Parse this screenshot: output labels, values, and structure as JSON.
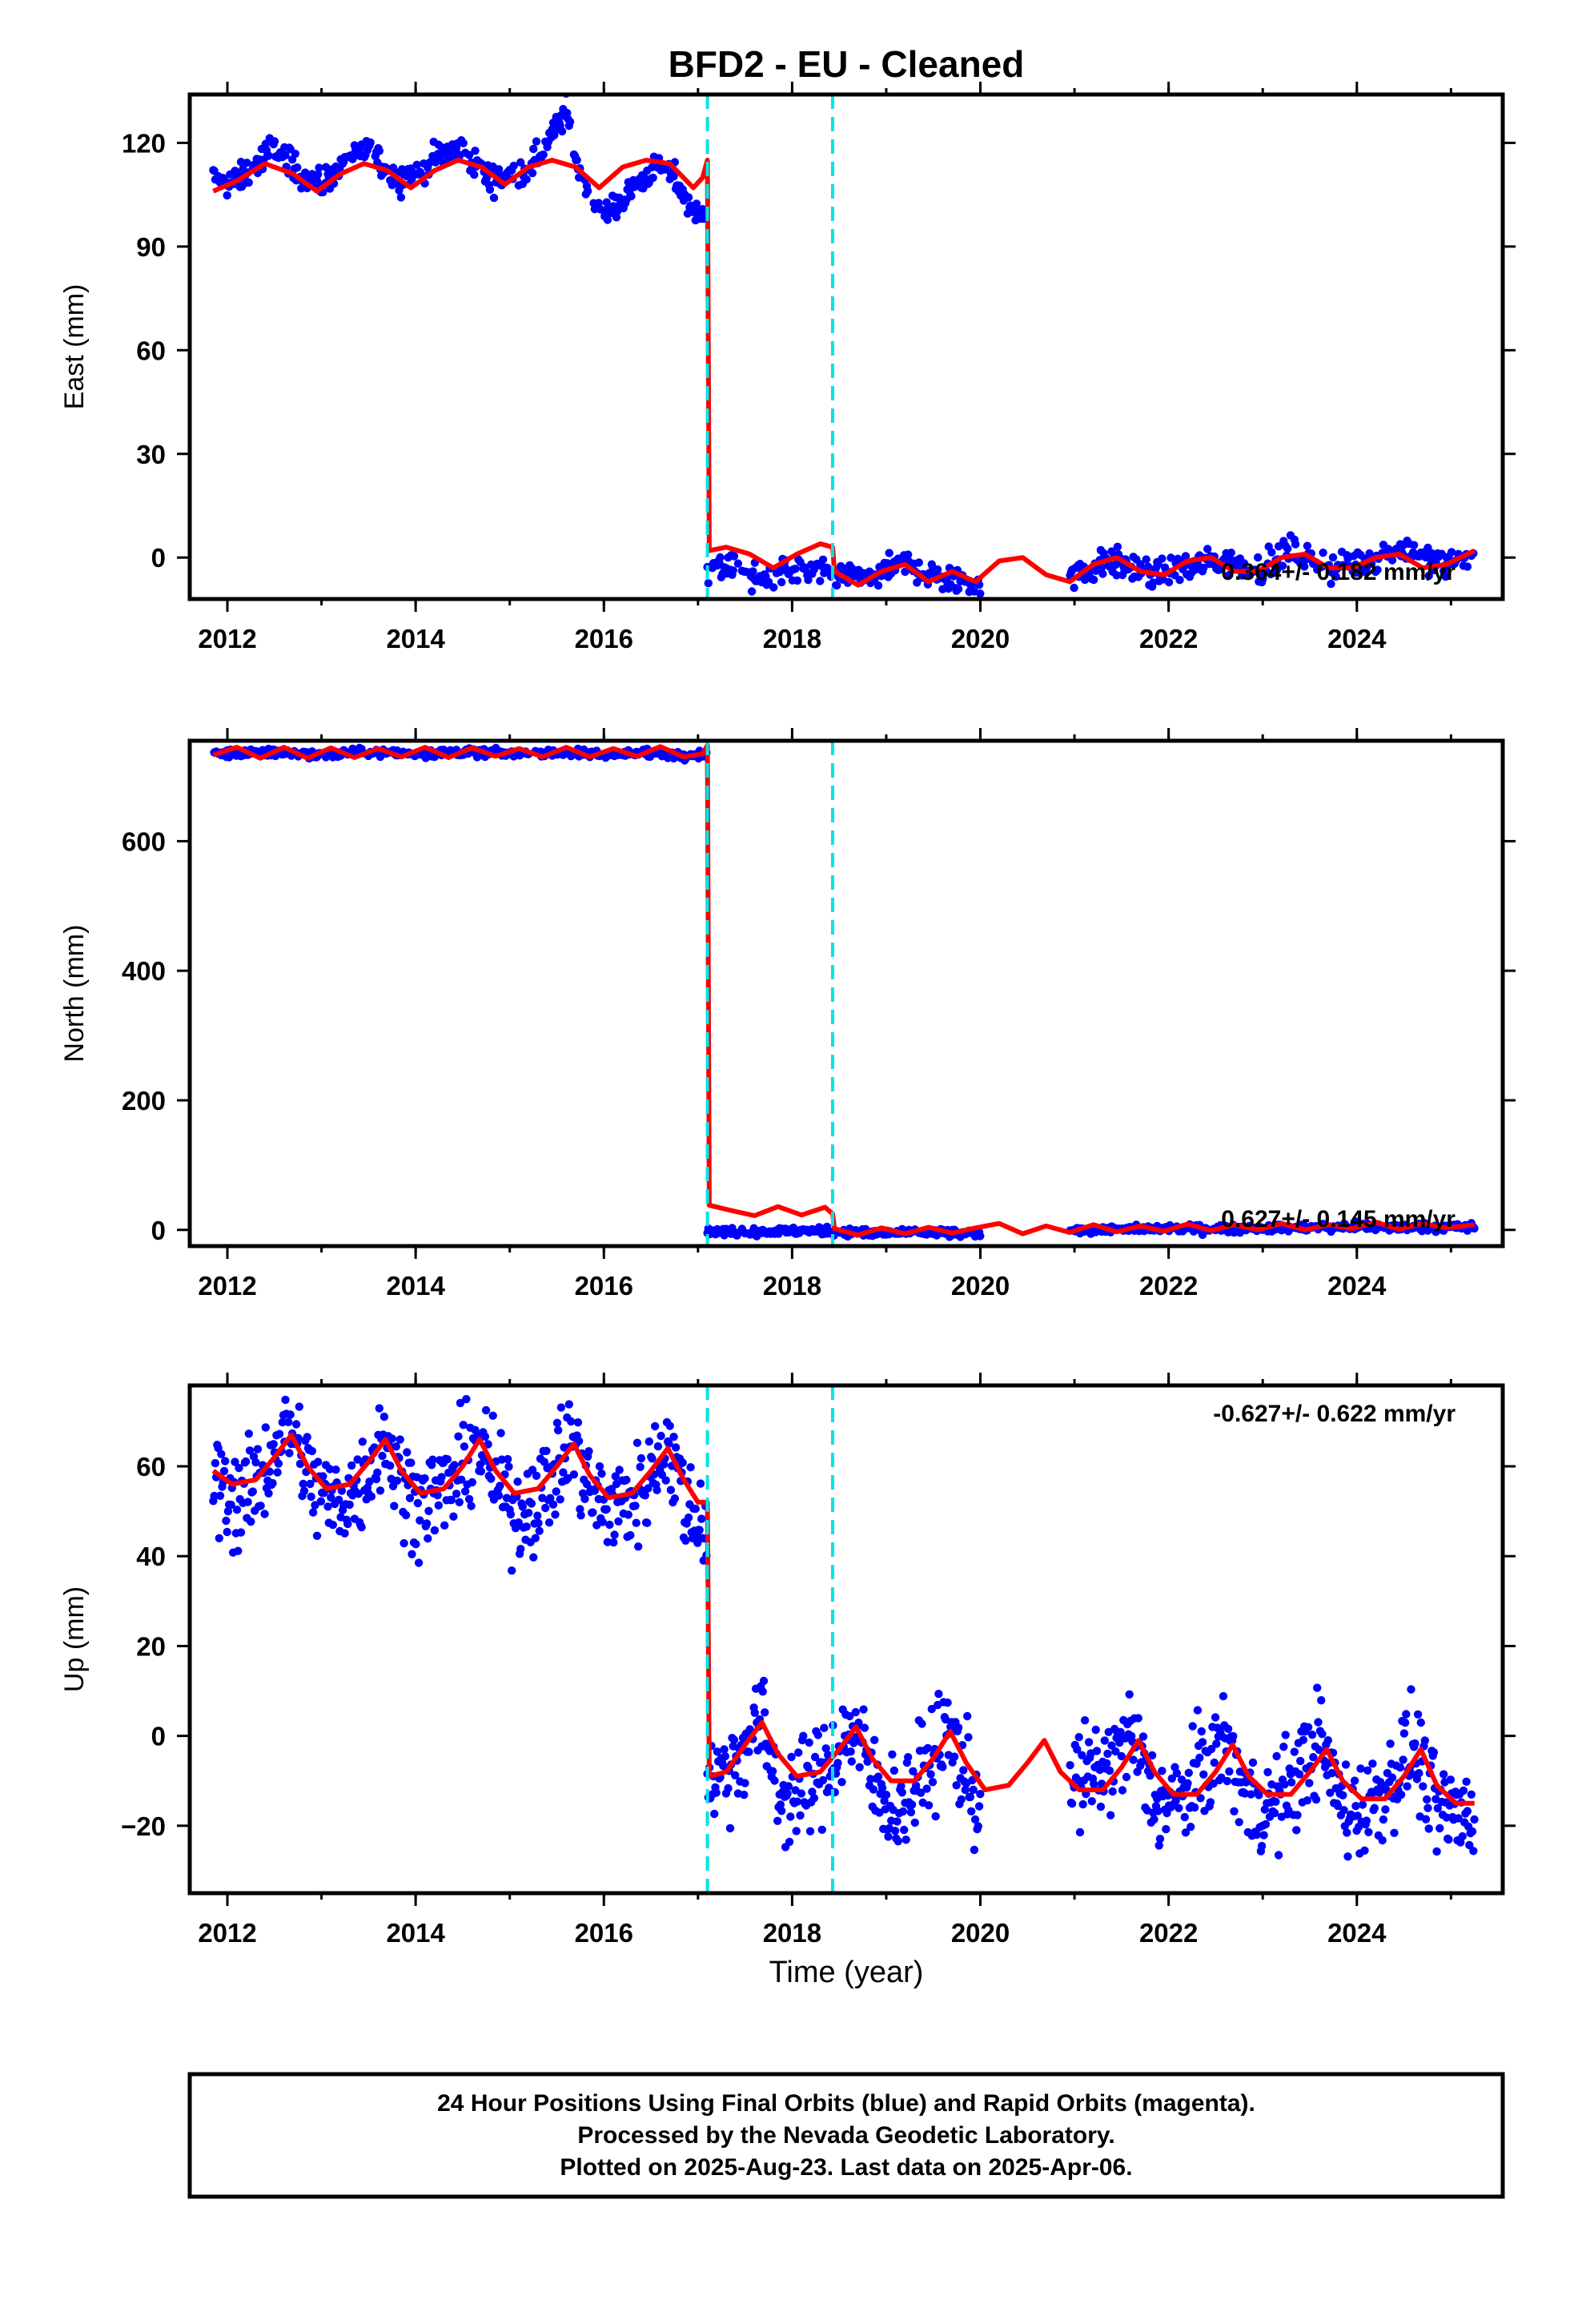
{
  "title": "BFD2  - EU - Cleaned",
  "xlabel": "Time (year)",
  "footer": {
    "line1": "24 Hour Positions Using Final Orbits (blue) and Rapid Orbits (magenta).",
    "line2": "Processed by the Nevada Geodetic Laboratory.",
    "line3": "Plotted on 2025-Aug-23. Last data on 2025-Apr-06."
  },
  "colors": {
    "data": "#0000ff",
    "model": "#ff0000",
    "event": "#00e5e5",
    "frame": "#000000"
  },
  "chart_data": [
    {
      "type": "scatter",
      "component": "east",
      "ylabel": "East (mm)",
      "xlim": [
        2011.6,
        2025.55
      ],
      "ylim": [
        -12,
        134
      ],
      "yticks": [
        0,
        30,
        60,
        90,
        120
      ],
      "xticks": [
        2012,
        2014,
        2016,
        2018,
        2020,
        2022,
        2024
      ],
      "rate_text": "0.364+/- 0.182 mm/yr",
      "event_lines": [
        2017.1,
        2018.43
      ],
      "gaps": [
        [
          2020.0,
          2020.95
        ]
      ],
      "series": [
        {
          "kind": "observations",
          "x": [
            2011.85,
            2012.0,
            2012.25,
            2012.5,
            2012.75,
            2013.0,
            2013.25,
            2013.5,
            2013.75,
            2014.0,
            2014.25,
            2014.5,
            2014.75,
            2015.0,
            2015.25,
            2015.5,
            2015.6,
            2015.75,
            2016.0,
            2016.25,
            2016.5,
            2016.75,
            2017.0,
            2017.1,
            2017.3,
            2017.6,
            2018.0,
            2018.4,
            2018.8,
            2019.2,
            2019.6,
            2019.95,
            2021.0,
            2021.4,
            2021.8,
            2022.2,
            2022.6,
            2023.0,
            2023.3,
            2023.7,
            2024.1,
            2024.5,
            2024.9,
            2025.25
          ],
          "y": [
            110,
            108,
            112,
            119,
            112,
            108,
            115,
            118,
            111,
            110,
            117,
            118,
            110,
            110,
            114,
            125,
            129,
            110,
            99,
            105,
            112,
            110,
            98,
            102,
            -3,
            -6,
            -4,
            -5,
            -6,
            -2,
            -6,
            -7,
            -5,
            -1,
            -5,
            -3,
            0,
            -4,
            2,
            -3,
            -1,
            3,
            -2,
            0
          ]
        },
        {
          "kind": "model",
          "x": [
            2011.85,
            2012.1,
            2012.4,
            2012.7,
            2012.95,
            2013.2,
            2013.45,
            2013.7,
            2013.95,
            2014.2,
            2014.45,
            2014.7,
            2014.95,
            2015.2,
            2015.45,
            2015.7,
            2015.95,
            2016.2,
            2016.45,
            2016.7,
            2016.95,
            2017.05,
            2017.1,
            2017.12,
            2017.3,
            2017.55,
            2017.8,
            2018.05,
            2018.3,
            2018.43,
            2018.45,
            2018.7,
            2018.95,
            2019.2,
            2019.45,
            2019.7,
            2019.95,
            2020.2,
            2020.45,
            2020.7,
            2020.95,
            2021.2,
            2021.45,
            2021.7,
            2021.95,
            2022.2,
            2022.45,
            2022.7,
            2022.95,
            2023.2,
            2023.45,
            2023.7,
            2023.95,
            2024.2,
            2024.45,
            2024.7,
            2024.95,
            2025.25
          ],
          "y": [
            106,
            109,
            114,
            111,
            106,
            111,
            114,
            112,
            107,
            112,
            115,
            113,
            108,
            113,
            115,
            113,
            107,
            113,
            115,
            114,
            107,
            110,
            115,
            2,
            3,
            1,
            -3,
            1,
            4,
            3,
            -4,
            -8,
            -4,
            -2,
            -7,
            -4,
            -7,
            -1,
            0,
            -5,
            -7,
            -2,
            0,
            -4,
            -5,
            -1,
            0,
            -4,
            -4,
            0,
            1,
            -3,
            -3,
            0,
            1,
            -3,
            -2,
            2
          ]
        }
      ]
    },
    {
      "type": "scatter",
      "component": "north",
      "ylabel": "North (mm)",
      "xlim": [
        2011.6,
        2025.55
      ],
      "ylim": [
        -25,
        755
      ],
      "yticks": [
        0,
        200,
        400,
        600
      ],
      "xticks": [
        2012,
        2014,
        2016,
        2018,
        2020,
        2022,
        2024
      ],
      "rate_text": "0.627+/- 0.145 mm/yr",
      "event_lines": [
        2017.1,
        2018.43
      ],
      "gaps": [
        [
          2020.0,
          2020.95
        ]
      ],
      "series": [
        {
          "kind": "observations",
          "x": [
            2011.85,
            2012.5,
            2013.0,
            2013.5,
            2014.0,
            2014.5,
            2015.0,
            2015.5,
            2016.0,
            2016.5,
            2017.0,
            2017.1,
            2017.5,
            2018.0,
            2018.4,
            2018.8,
            2019.3,
            2019.95,
            2021.0,
            2021.5,
            2022.0,
            2022.5,
            2023.0,
            2023.5,
            2024.0,
            2024.5,
            2025.25
          ],
          "y": [
            735,
            737,
            733,
            737,
            735,
            738,
            735,
            737,
            734,
            736,
            733,
            736,
            -3,
            -2,
            -1,
            -5,
            -4,
            -6,
            0,
            1,
            2,
            2,
            3,
            3,
            4,
            4,
            5
          ]
        },
        {
          "kind": "model",
          "x": [
            2011.85,
            2012.1,
            2012.35,
            2012.6,
            2012.85,
            2013.1,
            2013.35,
            2013.6,
            2013.85,
            2014.1,
            2014.35,
            2014.6,
            2014.85,
            2015.1,
            2015.35,
            2015.6,
            2015.85,
            2016.1,
            2016.35,
            2016.6,
            2016.85,
            2017.05,
            2017.1,
            2017.12,
            2017.35,
            2017.6,
            2017.85,
            2018.1,
            2018.35,
            2018.43,
            2018.45,
            2018.7,
            2018.95,
            2019.2,
            2019.45,
            2019.7,
            2019.95,
            2020.2,
            2020.45,
            2020.7,
            2020.95,
            2021.2,
            2021.45,
            2021.7,
            2021.95,
            2022.2,
            2022.45,
            2022.7,
            2022.95,
            2023.2,
            2023.45,
            2023.7,
            2023.95,
            2024.2,
            2024.45,
            2024.7,
            2024.95,
            2025.25
          ],
          "y": [
            733,
            745,
            728,
            745,
            728,
            744,
            729,
            743,
            730,
            745,
            729,
            744,
            731,
            743,
            730,
            745,
            730,
            743,
            731,
            746,
            730,
            735,
            748,
            38,
            30,
            22,
            36,
            23,
            35,
            25,
            2,
            -8,
            3,
            -6,
            4,
            -5,
            3,
            10,
            -6,
            6,
            -4,
            8,
            -3,
            6,
            -2,
            9,
            -1,
            8,
            0,
            10,
            0,
            8,
            2,
            12,
            1,
            10,
            3,
            8
          ]
        }
      ]
    },
    {
      "type": "scatter",
      "component": "up",
      "ylabel": "Up (mm)",
      "xlim": [
        2011.6,
        2025.55
      ],
      "ylim": [
        -35,
        78
      ],
      "yticks": [
        -20,
        0,
        20,
        40,
        60
      ],
      "xticks": [
        2012,
        2014,
        2016,
        2018,
        2020,
        2022,
        2024
      ],
      "rate_text": "-0.627+/- 0.622 mm/yr",
      "event_lines": [
        2017.1,
        2018.43
      ],
      "gaps": [
        [
          2020.0,
          2020.95
        ]
      ],
      "series": [
        {
          "kind": "observations",
          "x": [
            2011.85,
            2012.1,
            2012.35,
            2012.65,
            2012.9,
            2013.1,
            2013.4,
            2013.65,
            2013.9,
            2014.1,
            2014.4,
            2014.65,
            2014.9,
            2015.1,
            2015.4,
            2015.65,
            2015.9,
            2016.1,
            2016.4,
            2016.65,
            2016.9,
            2017.05,
            2017.15,
            2017.4,
            2017.65,
            2017.9,
            2018.15,
            2018.4,
            2018.65,
            2018.9,
            2019.15,
            2019.4,
            2019.65,
            2019.95,
            2021.0,
            2021.3,
            2021.6,
            2021.85,
            2022.1,
            2022.35,
            2022.6,
            2022.85,
            2023.1,
            2023.35,
            2023.6,
            2023.85,
            2024.1,
            2024.35,
            2024.6,
            2024.85,
            2025.25
          ],
          "y": [
            58,
            52,
            57,
            70,
            56,
            52,
            55,
            67,
            54,
            53,
            56,
            66,
            54,
            50,
            55,
            66,
            52,
            51,
            54,
            66,
            50,
            48,
            -10,
            -6,
            4,
            -14,
            -12,
            -6,
            2,
            -12,
            -16,
            -8,
            1,
            -14,
            -10,
            -8,
            0,
            -14,
            -15,
            -8,
            -1,
            -15,
            -16,
            -9,
            -1,
            -16,
            -16,
            -10,
            -2,
            -17,
            -18
          ]
        },
        {
          "kind": "model",
          "x": [
            2011.85,
            2012.05,
            2012.3,
            2012.5,
            2012.68,
            2012.85,
            2013.05,
            2013.3,
            2013.5,
            2013.68,
            2013.85,
            2014.05,
            2014.3,
            2014.5,
            2014.68,
            2014.85,
            2015.05,
            2015.3,
            2015.5,
            2015.68,
            2015.85,
            2016.05,
            2016.3,
            2016.5,
            2016.68,
            2016.85,
            2017.0,
            2017.1,
            2017.12,
            2017.3,
            2017.5,
            2017.68,
            2017.85,
            2018.05,
            2018.3,
            2018.5,
            2018.68,
            2018.85,
            2019.05,
            2019.3,
            2019.5,
            2019.68,
            2019.85,
            2020.05,
            2020.3,
            2020.5,
            2020.68,
            2020.85,
            2021.05,
            2021.3,
            2021.5,
            2021.68,
            2021.85,
            2022.05,
            2022.3,
            2022.5,
            2022.68,
            2022.85,
            2023.05,
            2023.3,
            2023.5,
            2023.68,
            2023.85,
            2024.05,
            2024.3,
            2024.5,
            2024.68,
            2024.85,
            2025.05,
            2025.25
          ],
          "y": [
            59,
            56,
            57,
            62,
            67,
            60,
            55,
            56,
            61,
            66,
            59,
            54,
            55,
            60,
            66,
            59,
            54,
            55,
            60,
            65,
            58,
            53,
            54,
            59,
            64,
            57,
            52,
            52,
            -9,
            -8,
            -2,
            3,
            -4,
            -9,
            -8,
            -3,
            2,
            -5,
            -10,
            -10,
            -5,
            1,
            -6,
            -12,
            -11,
            -6,
            -1,
            -8,
            -12,
            -12,
            -7,
            -1,
            -8,
            -13,
            -13,
            -8,
            -2,
            -9,
            -13,
            -13,
            -8,
            -3,
            -10,
            -14,
            -14,
            -9,
            -3,
            -11,
            -15,
            -15
          ]
        }
      ]
    }
  ]
}
